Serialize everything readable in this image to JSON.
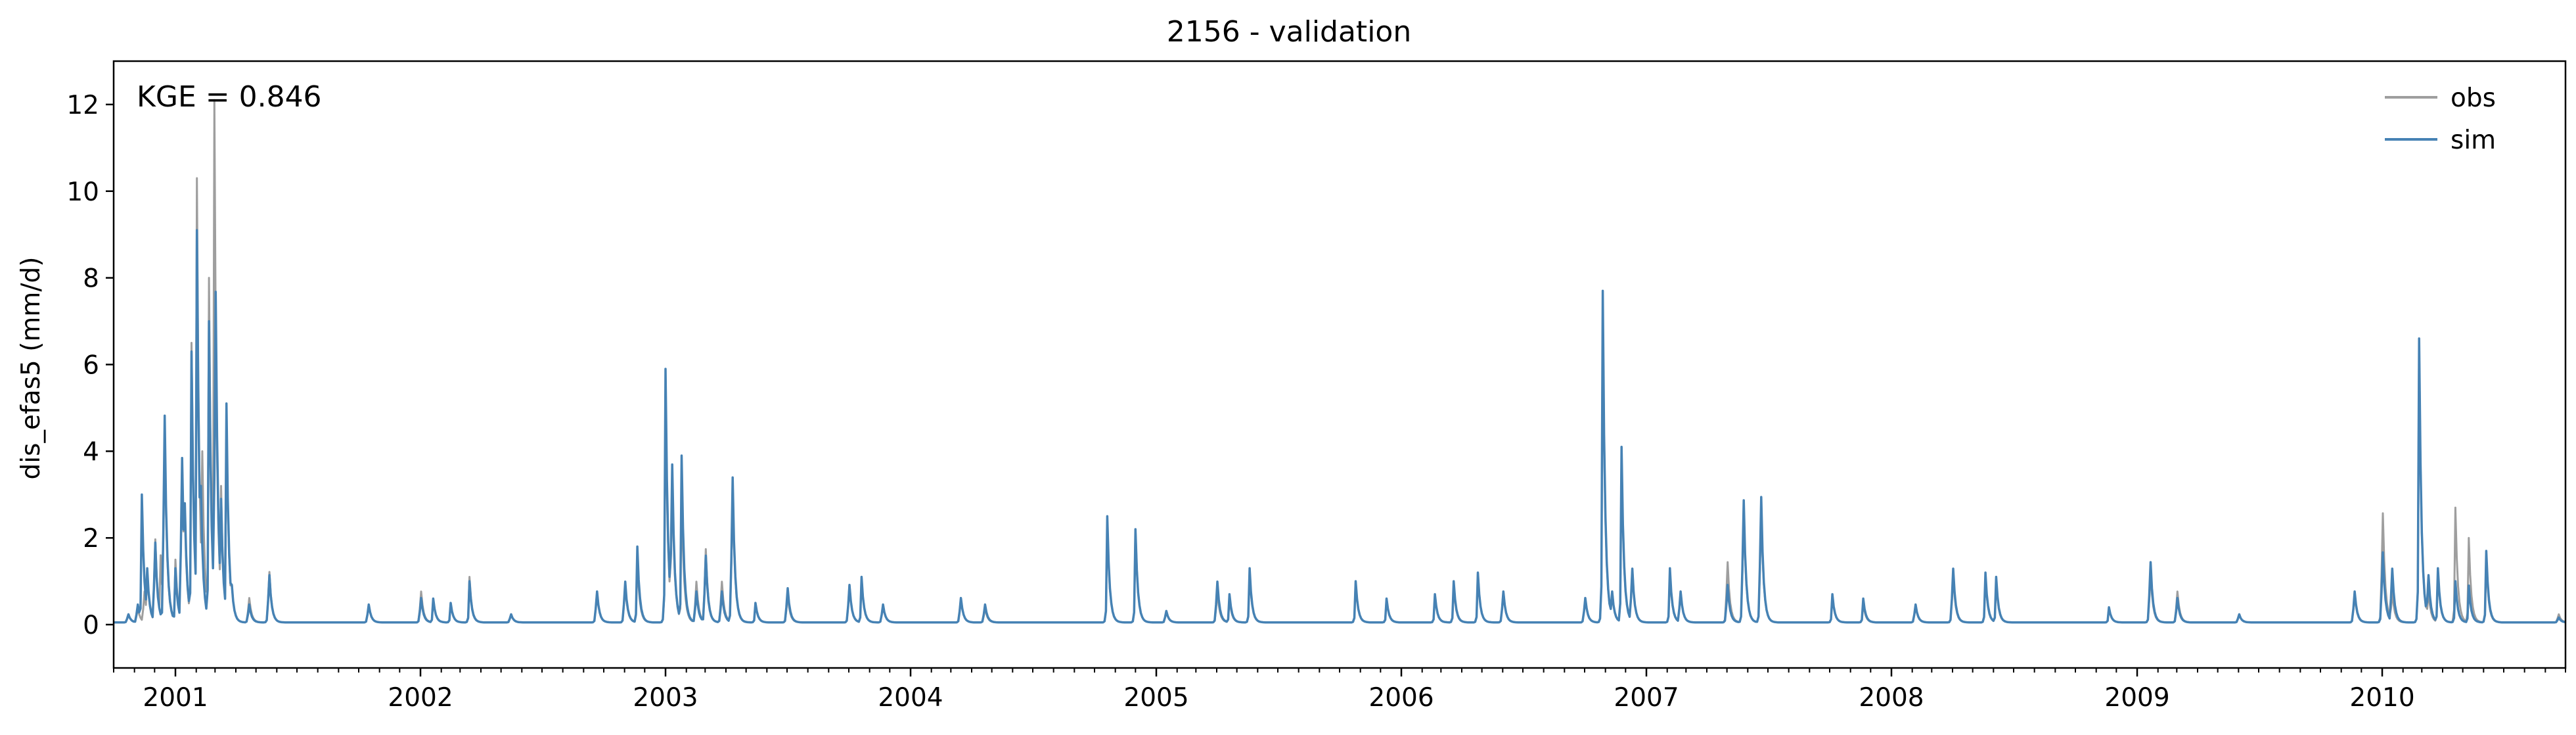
{
  "chart_data": {
    "type": "line",
    "title": "2156 - validation",
    "xlabel": "",
    "ylabel": "dis_efas5 (mm/d)",
    "xlim": [
      "2000-10-01",
      "2010-10-01"
    ],
    "ylim": [
      -1,
      13
    ],
    "yticks": [
      0,
      2,
      4,
      6,
      8,
      10,
      12
    ],
    "xtick_labels": [
      "2001",
      "2002",
      "2003",
      "2004",
      "2005",
      "2006",
      "2007",
      "2008",
      "2009",
      "2010"
    ],
    "xtick_dates": [
      "2001-01-01",
      "2002-01-01",
      "2003-01-01",
      "2004-01-01",
      "2005-01-01",
      "2006-01-01",
      "2007-01-01",
      "2008-01-01",
      "2009-01-01",
      "2010-01-01"
    ],
    "annotation": "KGE = 0.846",
    "legend_position": "top-right",
    "grid": false,
    "baseline": 0.05,
    "series": [
      {
        "name": "obs",
        "color": "#9e9e9e",
        "peaks": [
          [
            "2000-10-22",
            0.3
          ],
          [
            "2000-11-05",
            0.5
          ],
          [
            "2000-11-15",
            1.0
          ],
          [
            "2000-11-20",
            1.2
          ],
          [
            "2000-12-01",
            2.6
          ],
          [
            "2000-12-10",
            1.6
          ],
          [
            "2000-12-15",
            6.0
          ],
          [
            "2001-01-01",
            1.5
          ],
          [
            "2001-01-10",
            5.0
          ],
          [
            "2001-01-15",
            2.5
          ],
          [
            "2001-01-25",
            6.5
          ],
          [
            "2001-02-02",
            10.3
          ],
          [
            "2001-02-10",
            4.0
          ],
          [
            "2001-02-20",
            8.0
          ],
          [
            "2001-02-28",
            12.1
          ],
          [
            "2001-03-10",
            3.2
          ],
          [
            "2001-03-18",
            4.8
          ],
          [
            "2001-03-25",
            1.2
          ],
          [
            "2001-04-20",
            0.8
          ],
          [
            "2001-05-20",
            1.6
          ],
          [
            "2001-10-15",
            0.6
          ],
          [
            "2002-01-01",
            1.0
          ],
          [
            "2002-01-20",
            0.6
          ],
          [
            "2002-02-15",
            0.5
          ],
          [
            "2002-03-15",
            1.1
          ],
          [
            "2002-05-15",
            0.3
          ],
          [
            "2002-09-20",
            1.0
          ],
          [
            "2002-11-01",
            1.2
          ],
          [
            "2002-11-20",
            1.5
          ],
          [
            "2003-01-01",
            5.3
          ],
          [
            "2003-01-10",
            4.5
          ],
          [
            "2003-01-25",
            3.0
          ],
          [
            "2003-02-15",
            1.3
          ],
          [
            "2003-03-01",
            2.3
          ],
          [
            "2003-03-25",
            1.3
          ],
          [
            "2003-04-10",
            4.2
          ],
          [
            "2003-05-15",
            0.5
          ],
          [
            "2003-07-01",
            0.9
          ],
          [
            "2003-10-01",
            1.2
          ],
          [
            "2003-10-20",
            1.1
          ],
          [
            "2003-11-20",
            0.6
          ],
          [
            "2004-03-15",
            0.8
          ],
          [
            "2004-04-20",
            0.5
          ],
          [
            "2004-10-20",
            2.4
          ],
          [
            "2004-12-01",
            2.2
          ],
          [
            "2005-01-15",
            0.4
          ],
          [
            "2005-04-01",
            1.0
          ],
          [
            "2005-04-20",
            0.6
          ],
          [
            "2005-05-20",
            1.2
          ],
          [
            "2005-10-25",
            1.0
          ],
          [
            "2005-12-10",
            0.6
          ],
          [
            "2006-02-20",
            0.7
          ],
          [
            "2006-03-20",
            0.9
          ],
          [
            "2006-04-25",
            1.2
          ],
          [
            "2006-06-01",
            1.0
          ],
          [
            "2006-10-01",
            0.8
          ],
          [
            "2006-10-28",
            7.5
          ],
          [
            "2006-11-10",
            1.0
          ],
          [
            "2006-11-25",
            4.0
          ],
          [
            "2006-12-10",
            1.7
          ],
          [
            "2007-02-05",
            1.2
          ],
          [
            "2007-02-20",
            1.0
          ],
          [
            "2007-05-01",
            1.9
          ],
          [
            "2007-05-25",
            3.6
          ],
          [
            "2007-06-20",
            3.7
          ],
          [
            "2007-10-05",
            0.7
          ],
          [
            "2007-11-20",
            0.5
          ],
          [
            "2008-02-05",
            0.6
          ],
          [
            "2008-04-01",
            1.5
          ],
          [
            "2008-05-20",
            1.1
          ],
          [
            "2008-06-05",
            1.0
          ],
          [
            "2008-11-20",
            0.4
          ],
          [
            "2009-01-20",
            1.6
          ],
          [
            "2009-03-01",
            1.0
          ],
          [
            "2009-06-01",
            0.3
          ],
          [
            "2009-11-20",
            0.9
          ],
          [
            "2010-01-01",
            3.4
          ],
          [
            "2010-01-15",
            1.0
          ],
          [
            "2010-02-25",
            6.5
          ],
          [
            "2010-03-10",
            1.0
          ],
          [
            "2010-03-25",
            1.2
          ],
          [
            "2010-04-20",
            2.7
          ],
          [
            "2010-05-10",
            2.0
          ],
          [
            "2010-06-05",
            1.5
          ],
          [
            "2010-09-20",
            0.3
          ]
        ]
      },
      {
        "name": "sim",
        "color": "#4682b4",
        "peaks": [
          [
            "2000-10-22",
            0.3
          ],
          [
            "2000-11-05",
            0.6
          ],
          [
            "2000-11-12",
            3.0
          ],
          [
            "2000-11-20",
            1.3
          ],
          [
            "2000-12-01",
            2.5
          ],
          [
            "2000-12-15",
            6.4
          ],
          [
            "2001-01-01",
            1.3
          ],
          [
            "2001-01-10",
            5.1
          ],
          [
            "2001-01-15",
            2.8
          ],
          [
            "2001-01-25",
            6.3
          ],
          [
            "2001-02-02",
            9.1
          ],
          [
            "2001-02-08",
            3.2
          ],
          [
            "2001-02-20",
            7.0
          ],
          [
            "2001-03-01",
            10.2
          ],
          [
            "2001-03-10",
            2.9
          ],
          [
            "2001-03-18",
            5.1
          ],
          [
            "2001-03-25",
            1.2
          ],
          [
            "2001-04-20",
            0.6
          ],
          [
            "2001-05-20",
            1.5
          ],
          [
            "2001-10-15",
            0.6
          ],
          [
            "2002-01-01",
            0.8
          ],
          [
            "2002-01-20",
            0.6
          ],
          [
            "2002-02-15",
            0.5
          ],
          [
            "2002-03-15",
            1.0
          ],
          [
            "2002-05-15",
            0.3
          ],
          [
            "2002-09-20",
            1.0
          ],
          [
            "2002-11-01",
            1.3
          ],
          [
            "2002-11-20",
            1.8
          ],
          [
            "2003-01-01",
            5.9
          ],
          [
            "2003-01-10",
            4.9
          ],
          [
            "2003-01-25",
            3.9
          ],
          [
            "2003-02-15",
            1.0
          ],
          [
            "2003-03-01",
            2.1
          ],
          [
            "2003-03-25",
            1.0
          ],
          [
            "2003-04-10",
            4.5
          ],
          [
            "2003-05-15",
            0.5
          ],
          [
            "2003-07-01",
            1.1
          ],
          [
            "2003-10-01",
            1.2
          ],
          [
            "2003-10-20",
            1.1
          ],
          [
            "2003-11-20",
            0.6
          ],
          [
            "2004-03-15",
            0.8
          ],
          [
            "2004-04-20",
            0.6
          ],
          [
            "2004-10-20",
            2.5
          ],
          [
            "2004-12-01",
            2.2
          ],
          [
            "2005-01-15",
            0.4
          ],
          [
            "2005-04-01",
            1.3
          ],
          [
            "2005-04-20",
            0.7
          ],
          [
            "2005-05-20",
            1.3
          ],
          [
            "2005-10-25",
            1.0
          ],
          [
            "2005-12-10",
            0.6
          ],
          [
            "2006-02-20",
            0.7
          ],
          [
            "2006-03-20",
            1.0
          ],
          [
            "2006-04-25",
            1.2
          ],
          [
            "2006-06-01",
            1.0
          ],
          [
            "2006-10-01",
            0.8
          ],
          [
            "2006-10-28",
            7.7
          ],
          [
            "2006-11-10",
            1.0
          ],
          [
            "2006-11-25",
            4.1
          ],
          [
            "2006-12-10",
            1.7
          ],
          [
            "2007-02-05",
            1.3
          ],
          [
            "2007-02-20",
            1.0
          ],
          [
            "2007-05-01",
            1.2
          ],
          [
            "2007-05-25",
            3.8
          ],
          [
            "2007-06-20",
            3.9
          ],
          [
            "2007-10-05",
            0.7
          ],
          [
            "2007-11-20",
            0.6
          ],
          [
            "2008-02-05",
            0.6
          ],
          [
            "2008-04-01",
            1.7
          ],
          [
            "2008-05-20",
            1.2
          ],
          [
            "2008-06-05",
            1.1
          ],
          [
            "2008-11-20",
            0.4
          ],
          [
            "2009-01-20",
            1.9
          ],
          [
            "2009-03-01",
            0.8
          ],
          [
            "2009-06-01",
            0.3
          ],
          [
            "2009-11-20",
            1.0
          ],
          [
            "2010-01-01",
            2.2
          ],
          [
            "2010-01-15",
            1.7
          ],
          [
            "2010-02-25",
            6.6
          ],
          [
            "2010-03-10",
            1.5
          ],
          [
            "2010-03-25",
            1.3
          ],
          [
            "2010-04-20",
            1.0
          ],
          [
            "2010-05-10",
            0.9
          ],
          [
            "2010-06-05",
            1.7
          ],
          [
            "2010-09-20",
            0.2
          ]
        ]
      }
    ]
  }
}
